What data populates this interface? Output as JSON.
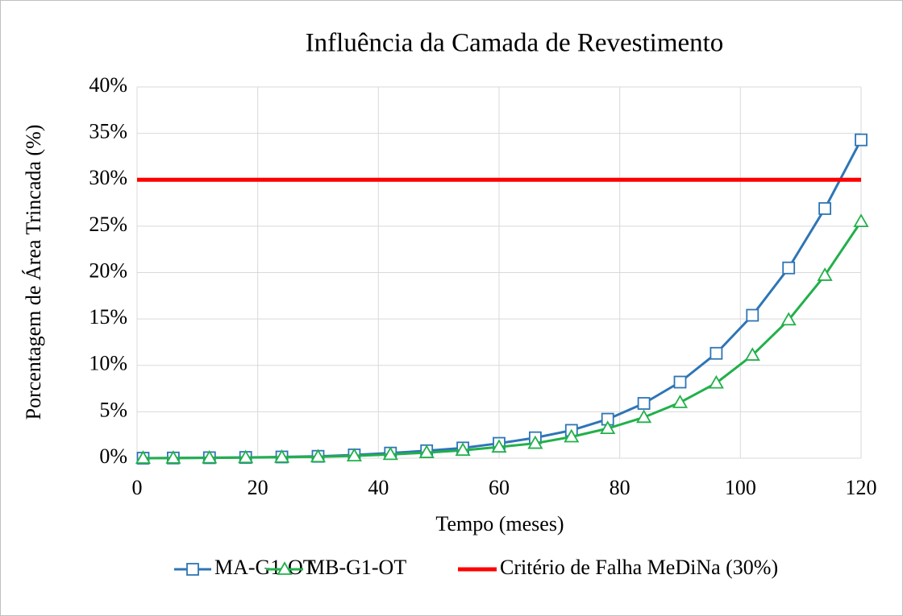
{
  "chart_data": {
    "type": "line",
    "title": "Influência da Camada de Revestimento",
    "x_label": "Tempo (meses)",
    "y_label": "Porcentagem de Área Trincada (%)",
    "x": [
      1,
      6,
      12,
      18,
      24,
      30,
      36,
      42,
      48,
      54,
      60,
      66,
      72,
      78,
      84,
      90,
      96,
      102,
      108,
      114,
      120
    ],
    "series": [
      {
        "name": "MA-G1-OT",
        "color": "#2e75b6",
        "marker": "square",
        "values": [
          0,
          0.02,
          0.05,
          0.08,
          0.13,
          0.2,
          0.35,
          0.55,
          0.8,
          1.1,
          1.6,
          2.2,
          3.0,
          4.2,
          5.9,
          8.2,
          11.3,
          15.4,
          20.5,
          26.9,
          34.3
        ]
      },
      {
        "name": "MB-G1-OT",
        "color": "#22b04b",
        "marker": "triangle",
        "values": [
          0,
          0.01,
          0.03,
          0.06,
          0.1,
          0.15,
          0.25,
          0.4,
          0.6,
          0.85,
          1.2,
          1.6,
          2.3,
          3.2,
          4.4,
          6.0,
          8.1,
          11.1,
          14.9,
          19.7,
          25.5
        ]
      },
      {
        "name": "Critério de Falha MeDiNa (30%)",
        "color": "#ff0000",
        "marker": "none",
        "x": [
          0,
          120
        ],
        "values": [
          30,
          30
        ]
      }
    ],
    "xlim": [
      0,
      120
    ],
    "xticks": [
      0,
      20,
      40,
      60,
      80,
      100,
      120
    ],
    "ylim": [
      0,
      40
    ],
    "yticks": [
      {
        "value": 0,
        "label": "0%"
      },
      {
        "value": 5,
        "label": "5%"
      },
      {
        "value": 10,
        "label": "10%"
      },
      {
        "value": 15,
        "label": "15%"
      },
      {
        "value": 20,
        "label": "20%"
      },
      {
        "value": 25,
        "label": "25%"
      },
      {
        "value": 30,
        "label": "30%"
      },
      {
        "value": 35,
        "label": "35%"
      },
      {
        "value": 40,
        "label": "40%"
      }
    ],
    "grid": true,
    "legend": "bottom"
  }
}
